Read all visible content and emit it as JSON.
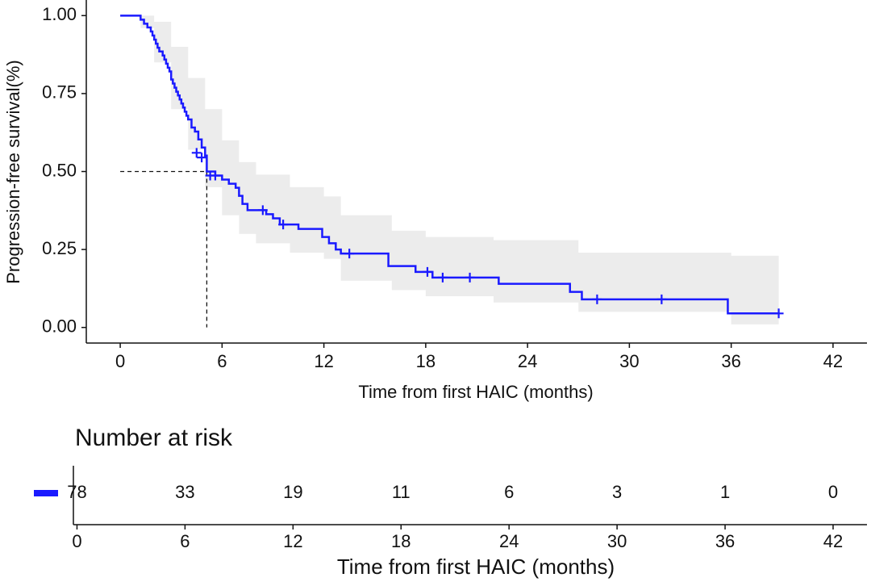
{
  "chart_data": {
    "type": "km",
    "xlabel": "Time from first HAIC (months)",
    "ylabel": "Progression-free survival(%)",
    "xlim": [
      -2,
      44
    ],
    "ylim": [
      -0.05,
      1.05
    ],
    "xticks": [
      0,
      6,
      12,
      18,
      24,
      30,
      36,
      42
    ],
    "yticks": [
      {
        "value": 0,
        "label": "0.00"
      },
      {
        "value": 0.25,
        "label": "0.25"
      },
      {
        "value": 0.5,
        "label": "0.50"
      },
      {
        "value": 0.75,
        "label": "0.75"
      },
      {
        "value": 1,
        "label": "1.00"
      }
    ],
    "color": "#1a1aff",
    "band_color": "#ececec",
    "series": [
      {
        "x": [
          0,
          1.2,
          1.4,
          1.6,
          1.8,
          1.9,
          2.0,
          2.1,
          2.2,
          2.3,
          2.5,
          2.6,
          2.7,
          2.8,
          2.9,
          3.0,
          3.1,
          3.2,
          3.3,
          3.4,
          3.5,
          3.6,
          3.7,
          3.8,
          3.9,
          4.0,
          4.2,
          4.4,
          4.6,
          4.8,
          5.0,
          5.1,
          5.6,
          6.0,
          6.4,
          6.8,
          7.0,
          7.2,
          7.5,
          8.6,
          9.0,
          9.4,
          10.5,
          11.9,
          12.3,
          12.7,
          13.0,
          15.8,
          17.4,
          18.4,
          22.3,
          26.5,
          27.2,
          35.8,
          38.8
        ],
        "values": [
          1.0,
          0.987,
          0.974,
          0.962,
          0.949,
          0.936,
          0.923,
          0.91,
          0.897,
          0.885,
          0.872,
          0.859,
          0.846,
          0.833,
          0.821,
          0.795,
          0.782,
          0.769,
          0.756,
          0.744,
          0.731,
          0.718,
          0.705,
          0.692,
          0.679,
          0.667,
          0.641,
          0.628,
          0.603,
          0.577,
          0.551,
          0.5,
          0.487,
          0.474,
          0.461,
          0.448,
          0.422,
          0.396,
          0.376,
          0.363,
          0.35,
          0.33,
          0.316,
          0.29,
          0.27,
          0.25,
          0.237,
          0.197,
          0.178,
          0.16,
          0.14,
          0.114,
          0.09,
          0.045,
          0.045
        ]
      }
    ],
    "censored": {
      "x": [
        4.5,
        4.8,
        5.3,
        5.6,
        8.4,
        9.6,
        13.5,
        18.1,
        19.0,
        20.6,
        28.1,
        31.9,
        38.8
      ],
      "values": [
        0.56,
        0.545,
        0.487,
        0.487,
        0.376,
        0.33,
        0.237,
        0.178,
        0.16,
        0.16,
        0.09,
        0.09,
        0.045
      ]
    },
    "band": {
      "x": [
        0,
        1.2,
        2,
        3,
        4,
        5,
        6,
        7,
        8,
        10,
        12,
        13,
        16,
        18,
        22,
        27,
        36,
        38.8
      ],
      "upper": [
        1,
        1,
        0.98,
        0.9,
        0.8,
        0.7,
        0.6,
        0.53,
        0.49,
        0.45,
        0.42,
        0.36,
        0.31,
        0.29,
        0.28,
        0.24,
        0.23,
        0.23
      ],
      "lower": [
        1,
        0.96,
        0.85,
        0.7,
        0.57,
        0.45,
        0.36,
        0.3,
        0.27,
        0.24,
        0.22,
        0.15,
        0.12,
        0.1,
        0.08,
        0.05,
        0.01,
        0.01
      ]
    },
    "median": {
      "x": 5.1,
      "y": 0.5
    },
    "risk_table": {
      "title": "Number at risk",
      "xlabel": "Time from first HAIC (months)",
      "xlim": [
        -0.2,
        42
      ],
      "times": [
        0,
        6,
        12,
        18,
        24,
        30,
        36,
        42
      ],
      "counts": [
        78,
        33,
        19,
        11,
        6,
        3,
        1,
        0
      ]
    }
  }
}
